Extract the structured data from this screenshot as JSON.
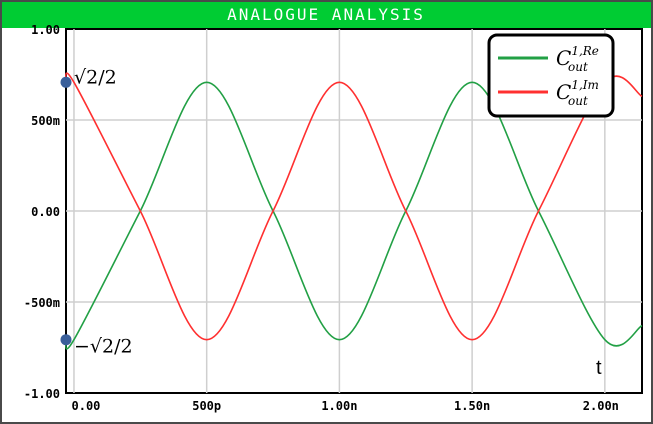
{
  "window": {
    "title": "ANALOGUE ANALYSIS",
    "title_bg": "#00cc33",
    "title_fg": "#ffffff"
  },
  "chart_data": {
    "type": "line",
    "title": "ANALOGUE ANALYSIS",
    "xlabel": "t",
    "ylabel": "",
    "xlim": [
      -3e-11,
      2.14e-09
    ],
    "ylim": [
      -1.0,
      1.0
    ],
    "grid": true,
    "legend_position": "top-right",
    "x_ticks": [
      {
        "value": 0,
        "label": "0.00"
      },
      {
        "value": 5e-10,
        "label": "500p"
      },
      {
        "value": 1e-09,
        "label": "1.00n"
      },
      {
        "value": 1.5e-09,
        "label": "1.50n"
      },
      {
        "value": 2e-09,
        "label": "2.00n"
      }
    ],
    "y_ticks": [
      {
        "value": 1.0,
        "label": "1.00"
      },
      {
        "value": 0.5,
        "label": "500m"
      },
      {
        "value": 0.0,
        "label": "0.00"
      },
      {
        "value": -0.5,
        "label": "-500m"
      },
      {
        "value": -1.0,
        "label": "-1.00"
      }
    ],
    "series": [
      {
        "name": "C_out^{1,Re}",
        "legend_base": "C",
        "legend_sup": "1,Re",
        "legend_sub": "out",
        "color": "#22a045",
        "x": [
          -3e-11,
          0,
          2.5e-10,
          5e-10,
          7.5e-10,
          1e-09,
          1.25e-09,
          1.5e-09,
          1.75e-09,
          2e-09,
          2.14e-09
        ],
        "y": [
          -0.7,
          -0.707,
          0.0,
          0.707,
          0.0,
          -0.707,
          0.0,
          0.707,
          0.0,
          -0.707,
          -0.63
        ]
      },
      {
        "name": "C_out^{1,Im}",
        "legend_base": "C",
        "legend_sup": "1,Im",
        "legend_sub": "out",
        "color": "#ff3030",
        "x": [
          -3e-11,
          0,
          2.5e-10,
          5e-10,
          7.5e-10,
          1e-09,
          1.25e-09,
          1.5e-09,
          1.75e-09,
          2e-09,
          2.14e-09
        ],
        "y": [
          0.7,
          0.707,
          0.0,
          -0.707,
          0.0,
          0.707,
          0.0,
          -0.707,
          0.0,
          0.707,
          0.63
        ]
      }
    ],
    "markers": [
      {
        "y": 0.7071,
        "label": "√2/2",
        "color": "#3a5f9a"
      },
      {
        "y": -0.7071,
        "label": "−√2/2",
        "color": "#3a5f9a"
      }
    ]
  }
}
